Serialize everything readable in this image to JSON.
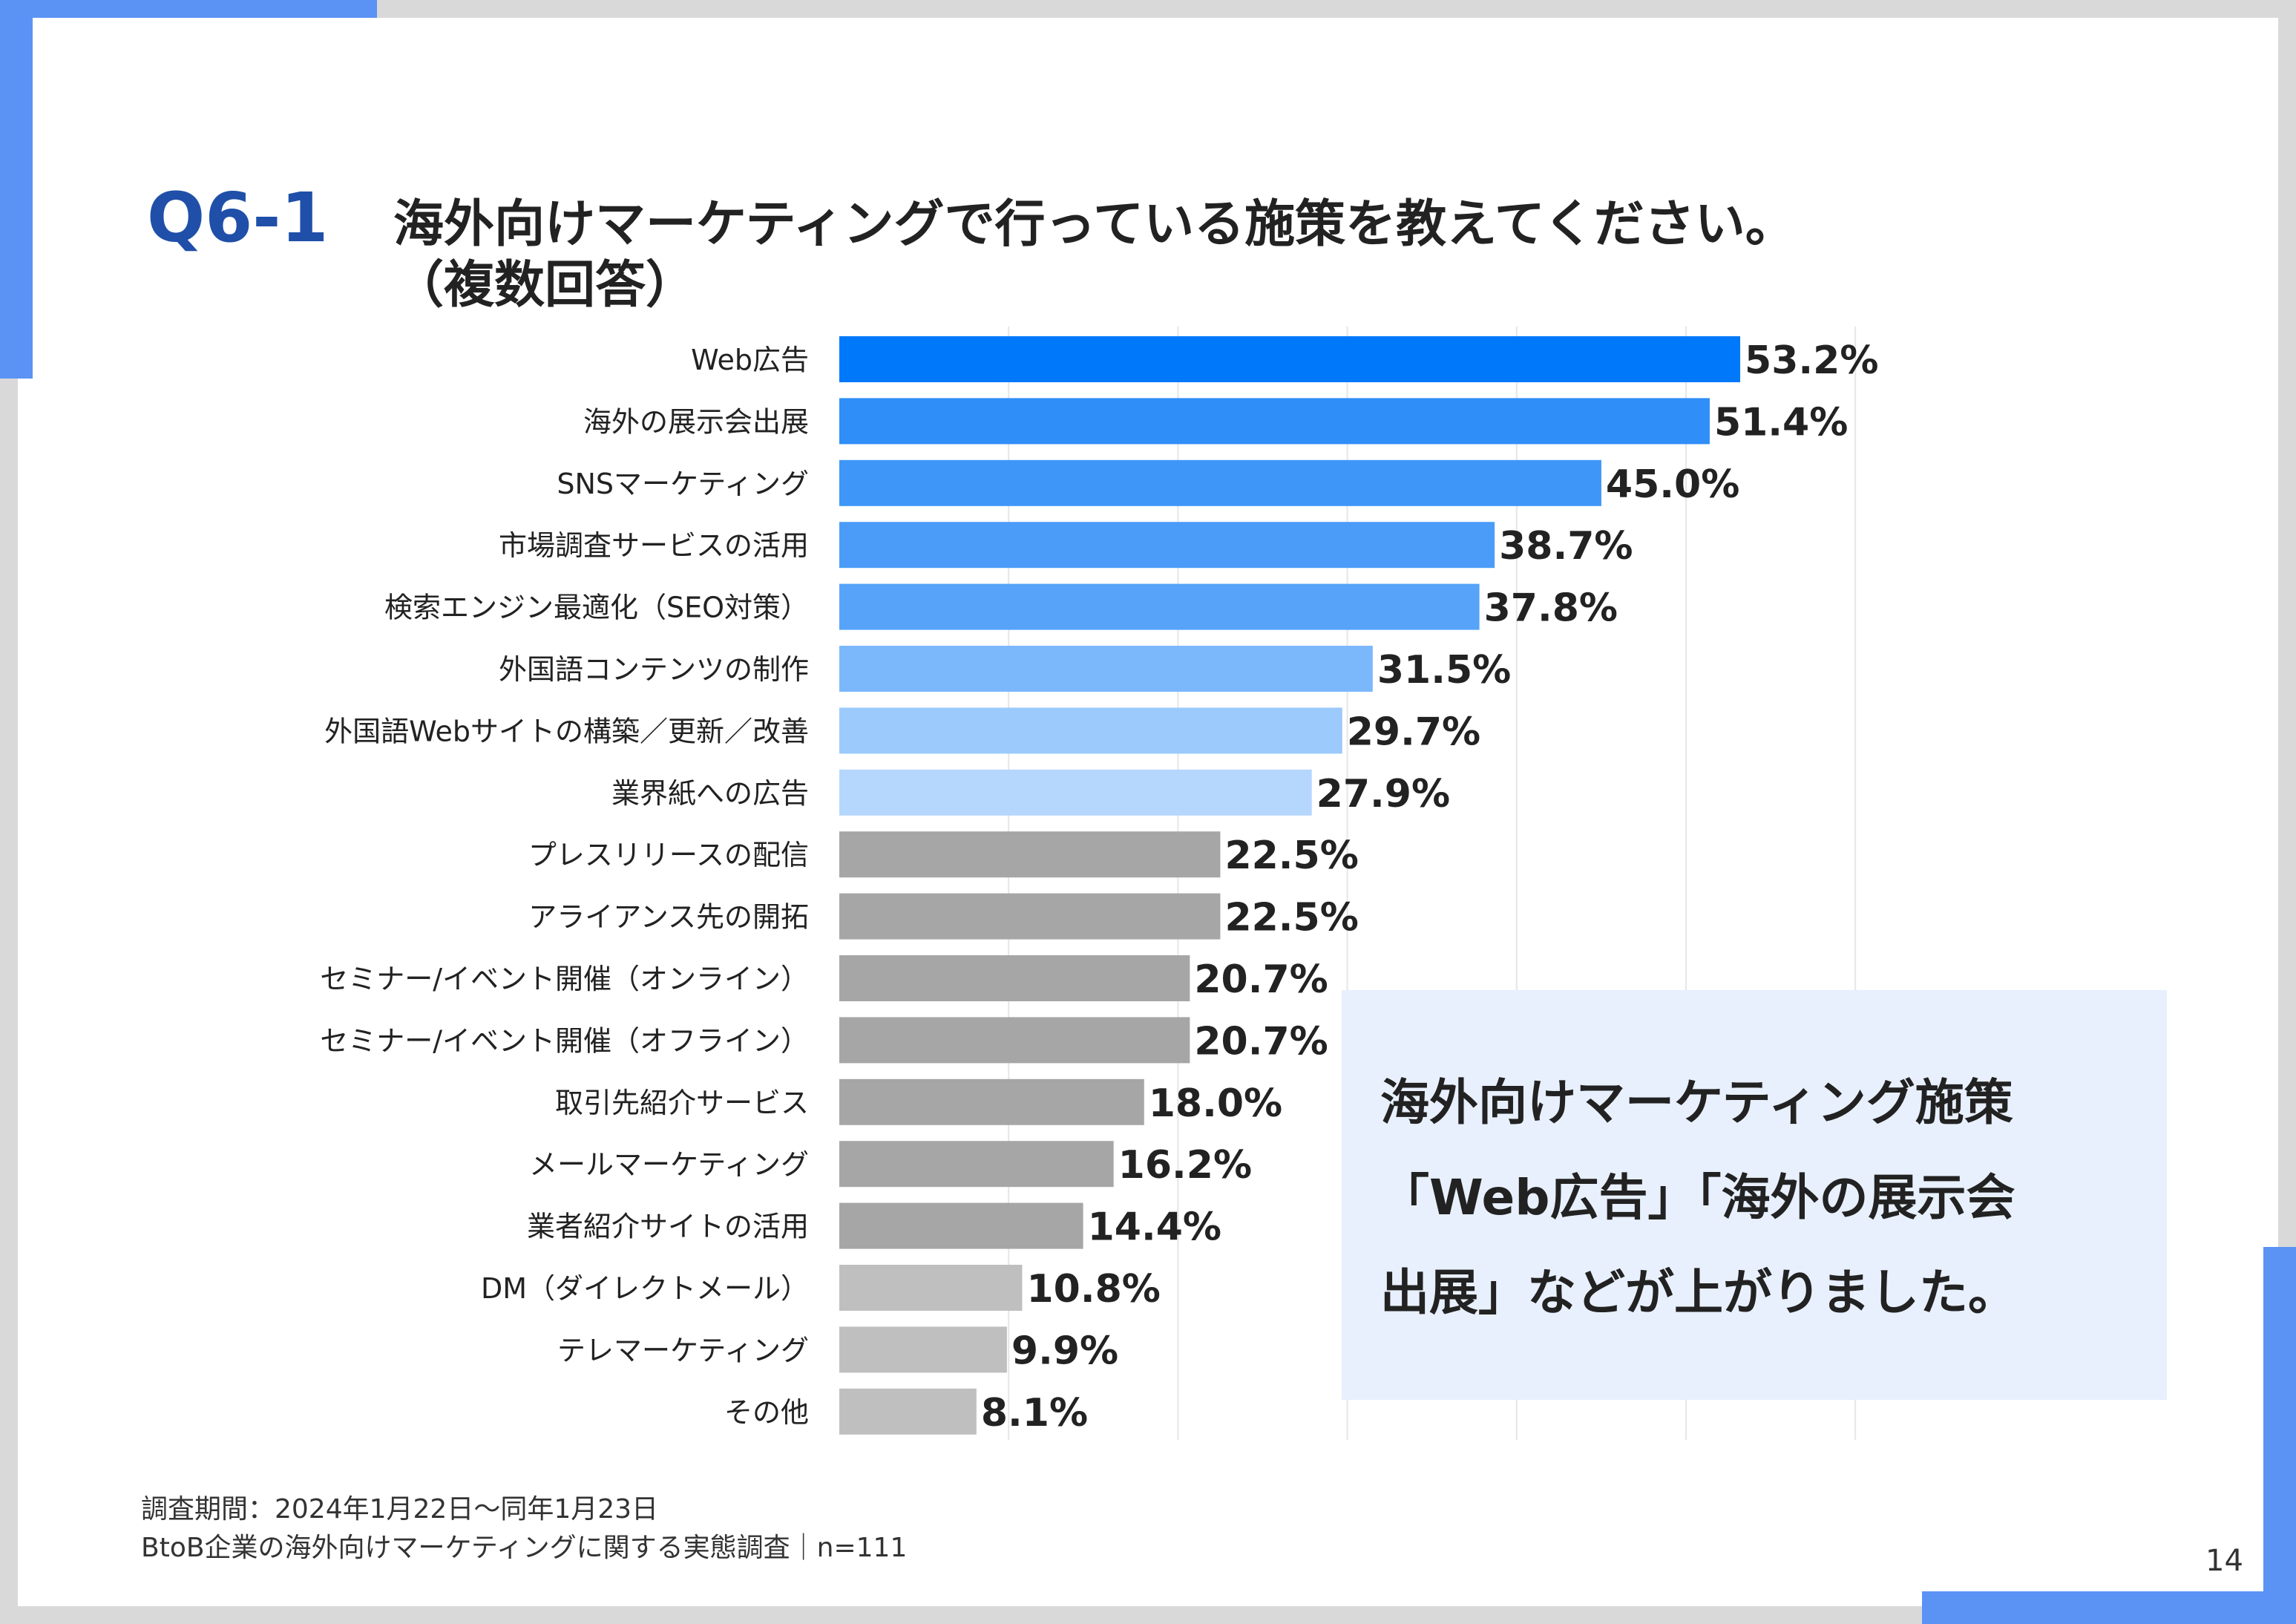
{
  "header": {
    "question_number": "Q6-1",
    "title_line1": "海外向けマーケティングで行っている施策を教えてください。",
    "title_line2": "（複数回答）"
  },
  "chart_data": {
    "type": "bar",
    "orientation": "horizontal",
    "categories": [
      "Web広告",
      "海外の展示会出展",
      "SNSマーケティング",
      "市場調査サービスの活用",
      "検索エンジン最適化（SEO対策）",
      "外国語コンテンツの制作",
      "外国語Webサイトの構築／更新／改善",
      "業界紙への広告",
      "プレスリリースの配信",
      "アライアンス先の開拓",
      "セミナー/イベント開催（オンライン）",
      "セミナー/イベント開催（オフライン）",
      "取引先紹介サービス",
      "メールマーケティング",
      "業者紹介サイトの活用",
      "DM（ダイレクトメール）",
      "テレマーケティング",
      "その他"
    ],
    "values": [
      53.2,
      51.4,
      45.0,
      38.7,
      37.8,
      31.5,
      29.7,
      27.9,
      22.5,
      22.5,
      20.7,
      20.7,
      18.0,
      16.2,
      14.4,
      10.8,
      9.9,
      8.1
    ],
    "value_labels": [
      "53.2%",
      "51.4%",
      "45.0%",
      "38.7%",
      "37.8%",
      "31.5%",
      "29.7%",
      "27.9%",
      "22.5%",
      "22.5%",
      "20.7%",
      "20.7%",
      "18.0%",
      "16.2%",
      "14.4%",
      "10.8%",
      "9.9%",
      "8.1%"
    ],
    "bar_colors": [
      "#0078fa",
      "#2f8ef8",
      "#3e96f8",
      "#4a9cf8",
      "#56a3f9",
      "#7bb8fb",
      "#9ccafc",
      "#b5d6fd",
      "#a6a6a6",
      "#a6a6a6",
      "#a6a6a6",
      "#a6a6a6",
      "#a6a6a6",
      "#a6a6a6",
      "#a6a6a6",
      "#bfbfbf",
      "#bfbfbf",
      "#bfbfbf"
    ],
    "xlim": [
      0,
      60
    ],
    "grid": true,
    "legend": false
  },
  "callout": {
    "line1": "海外向けマーケティング施策",
    "line2": "「Web広告」「海外の展示会",
    "line3": "出展」などが上がりました。"
  },
  "footnote": {
    "line1": "調査期間：2024年1月22日～同年1月23日",
    "line2": "BtoB企業の海外向けマーケティングに関する実態調査｜n=111"
  },
  "page_number": "14",
  "colors": {
    "accent": "#5b93f5",
    "title_blue": "#1f4fa8",
    "callout_bg": "#e8f0fd"
  }
}
